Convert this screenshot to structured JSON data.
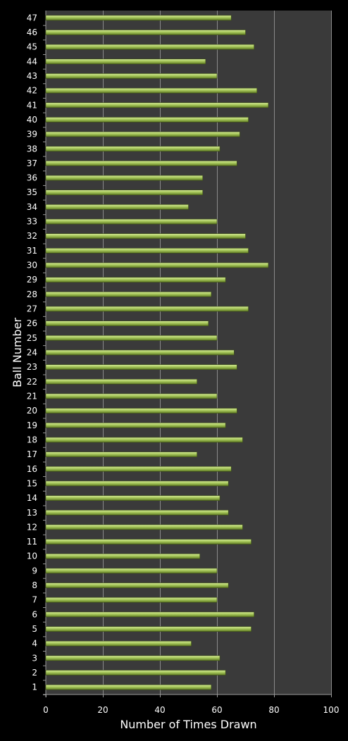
{
  "chart_data": {
    "type": "bar",
    "orientation": "horizontal",
    "title": "",
    "xlabel": "Number of Times Drawn",
    "ylabel": "Ball Number",
    "xlim": [
      0,
      100
    ],
    "xticks": [
      0,
      20,
      40,
      60,
      80,
      100
    ],
    "grid": true,
    "legend": "none",
    "categories": [
      "1",
      "2",
      "3",
      "4",
      "5",
      "6",
      "7",
      "8",
      "9",
      "10",
      "11",
      "12",
      "13",
      "14",
      "15",
      "16",
      "17",
      "18",
      "19",
      "20",
      "21",
      "22",
      "23",
      "24",
      "25",
      "26",
      "27",
      "28",
      "29",
      "30",
      "31",
      "32",
      "33",
      "34",
      "35",
      "36",
      "37",
      "38",
      "39",
      "40",
      "41",
      "42",
      "43",
      "44",
      "45",
      "46",
      "47"
    ],
    "values": [
      58,
      63,
      61,
      51,
      72,
      73,
      60,
      64,
      60,
      54,
      72,
      69,
      64,
      61,
      64,
      65,
      53,
      69,
      63,
      67,
      60,
      53,
      67,
      66,
      60,
      57,
      71,
      58,
      63,
      78,
      71,
      70,
      60,
      50,
      55,
      55,
      67,
      61,
      68,
      71,
      78,
      74,
      60,
      56,
      73,
      70,
      65
    ],
    "colors": {
      "background": "#000000",
      "plot_area": "#3a3a3a",
      "gridline": "#8a8a8a",
      "bar_light": "#d6ea9a",
      "bar_mid": "#a6c75a",
      "bar_dark": "#5f7a24",
      "text": "#ffffff"
    }
  }
}
